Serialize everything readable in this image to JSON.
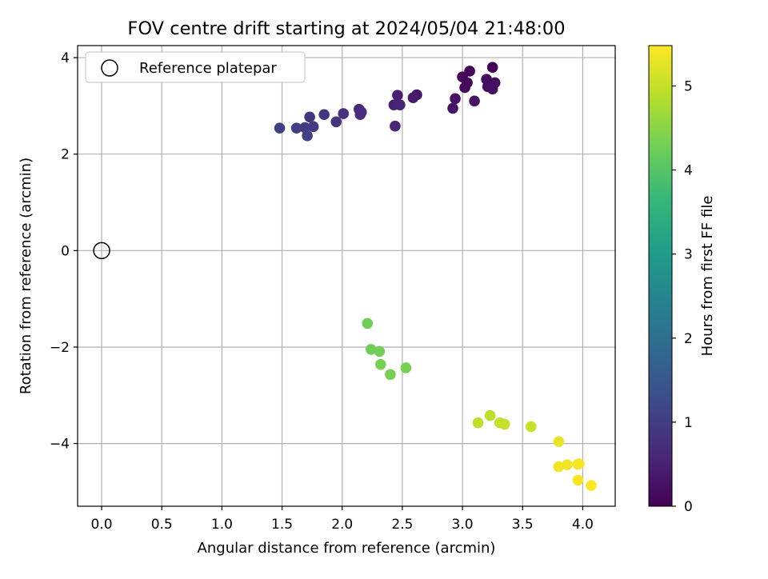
{
  "chart_data": {
    "type": "scatter",
    "title": "FOV centre drift starting at 2024/05/04 21:48:00",
    "xlabel": "Angular distance from reference (arcmin)",
    "ylabel": "Rotation from reference (arcmin)",
    "xlim": [
      -0.2,
      4.27
    ],
    "ylim": [
      -5.3,
      4.25
    ],
    "xticks": [
      "0.0",
      "0.5",
      "1.0",
      "1.5",
      "2.0",
      "2.5",
      "3.0",
      "3.5",
      "4.0"
    ],
    "yticks": [
      "4",
      "2",
      "0",
      "−2",
      "−4"
    ],
    "xtick_values": [
      0,
      0.5,
      1.0,
      1.5,
      2.0,
      2.5,
      3.0,
      3.5,
      4.0
    ],
    "ytick_values": [
      4,
      2,
      0,
      -2,
      -4
    ],
    "grid": true,
    "legend": {
      "position": "top-left",
      "label": "Reference platepar"
    },
    "reference_point": {
      "x": 0,
      "y": 0
    },
    "colorbar": {
      "label": "Hours from first FF file",
      "colormap": "viridis",
      "range": [
        0,
        5.48
      ],
      "ticks": [
        "0",
        "1",
        "2",
        "3",
        "4",
        "5"
      ],
      "tick_values": [
        0,
        1,
        2,
        3,
        4,
        5
      ]
    },
    "colormap_stops": [
      "#440154",
      "#482878",
      "#3e4989",
      "#31688e",
      "#26828e",
      "#1f9e89",
      "#35b779",
      "#6ece58",
      "#b5de2b",
      "#fde725"
    ],
    "points": [
      {
        "x": 3.25,
        "y": 3.8,
        "t": 0.05
      },
      {
        "x": 3.06,
        "y": 3.72,
        "t": 0.08
      },
      {
        "x": 3.0,
        "y": 3.6,
        "t": 0.1
      },
      {
        "x": 3.04,
        "y": 3.48,
        "t": 0.12
      },
      {
        "x": 3.02,
        "y": 3.38,
        "t": 0.14
      },
      {
        "x": 3.2,
        "y": 3.55,
        "t": 0.16
      },
      {
        "x": 3.27,
        "y": 3.48,
        "t": 0.18
      },
      {
        "x": 3.21,
        "y": 3.4,
        "t": 0.2
      },
      {
        "x": 3.25,
        "y": 3.35,
        "t": 0.22
      },
      {
        "x": 2.94,
        "y": 3.15,
        "t": 0.25
      },
      {
        "x": 3.1,
        "y": 3.1,
        "t": 0.28
      },
      {
        "x": 2.92,
        "y": 2.95,
        "t": 0.3
      },
      {
        "x": 2.62,
        "y": 3.23,
        "t": 0.35
      },
      {
        "x": 2.59,
        "y": 3.17,
        "t": 0.4
      },
      {
        "x": 2.46,
        "y": 3.22,
        "t": 0.45
      },
      {
        "x": 2.43,
        "y": 3.02,
        "t": 0.5
      },
      {
        "x": 2.48,
        "y": 3.02,
        "t": 0.55
      },
      {
        "x": 2.44,
        "y": 2.58,
        "t": 0.6
      },
      {
        "x": 2.14,
        "y": 2.93,
        "t": 0.65
      },
      {
        "x": 2.16,
        "y": 2.87,
        "t": 0.7
      },
      {
        "x": 2.15,
        "y": 2.82,
        "t": 0.72
      },
      {
        "x": 2.01,
        "y": 2.84,
        "t": 0.78
      },
      {
        "x": 1.95,
        "y": 2.67,
        "t": 0.82
      },
      {
        "x": 1.85,
        "y": 2.82,
        "t": 0.86
      },
      {
        "x": 1.73,
        "y": 2.77,
        "t": 0.9
      },
      {
        "x": 1.76,
        "y": 2.57,
        "t": 0.94
      },
      {
        "x": 1.69,
        "y": 2.55,
        "t": 0.98
      },
      {
        "x": 1.62,
        "y": 2.54,
        "t": 1.02
      },
      {
        "x": 1.48,
        "y": 2.54,
        "t": 1.05
      },
      {
        "x": 1.71,
        "y": 2.38,
        "t": 1.08
      },
      {
        "x": 2.21,
        "y": -1.51,
        "t": 4.25
      },
      {
        "x": 2.24,
        "y": -2.05,
        "t": 4.28
      },
      {
        "x": 2.31,
        "y": -2.09,
        "t": 4.3
      },
      {
        "x": 2.32,
        "y": -2.36,
        "t": 4.32
      },
      {
        "x": 2.4,
        "y": -2.57,
        "t": 4.34
      },
      {
        "x": 2.53,
        "y": -2.43,
        "t": 4.36
      },
      {
        "x": 3.23,
        "y": -3.42,
        "t": 4.95
      },
      {
        "x": 3.13,
        "y": -3.57,
        "t": 4.97
      },
      {
        "x": 3.31,
        "y": -3.57,
        "t": 4.99
      },
      {
        "x": 3.35,
        "y": -3.6,
        "t": 5.01
      },
      {
        "x": 3.57,
        "y": -3.65,
        "t": 5.05
      },
      {
        "x": 3.8,
        "y": -3.96,
        "t": 5.3
      },
      {
        "x": 3.8,
        "y": -4.48,
        "t": 5.38
      },
      {
        "x": 3.87,
        "y": -4.44,
        "t": 5.36
      },
      {
        "x": 3.96,
        "y": -4.43,
        "t": 5.4
      },
      {
        "x": 3.97,
        "y": -4.42,
        "t": 5.42
      },
      {
        "x": 3.96,
        "y": -4.76,
        "t": 5.44
      },
      {
        "x": 4.07,
        "y": -4.87,
        "t": 5.46
      }
    ]
  }
}
